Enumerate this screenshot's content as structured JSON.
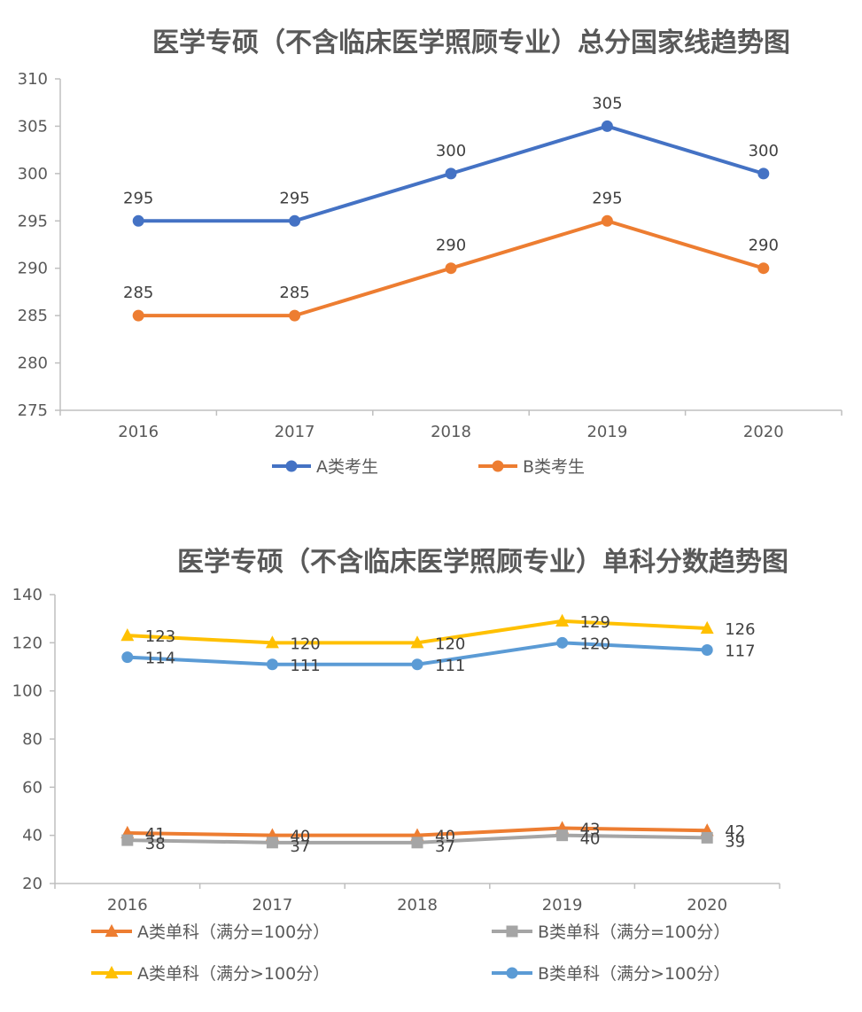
{
  "chart_data": [
    {
      "type": "line",
      "title": "医学专硕（不含临床医学照顾专业）总分国家线趋势图",
      "categories": [
        "2016",
        "2017",
        "2018",
        "2019",
        "2020"
      ],
      "ylim": [
        275,
        310
      ],
      "yticks": [
        "275",
        "280",
        "285",
        "290",
        "295",
        "300",
        "305",
        "310"
      ],
      "legend_position": "bottom",
      "series": [
        {
          "name": "A类考生",
          "values": [
            295,
            295,
            300,
            305,
            300
          ],
          "labels": [
            "295",
            "295",
            "300",
            "305",
            "300"
          ],
          "color": "#4472c4",
          "marker": "circle"
        },
        {
          "name": "B类考生",
          "values": [
            285,
            285,
            290,
            295,
            290
          ],
          "labels": [
            "285",
            "285",
            "290",
            "295",
            "290"
          ],
          "color": "#ed7d31",
          "marker": "circle"
        }
      ]
    },
    {
      "type": "line",
      "title": "医学专硕（不含临床医学照顾专业）单科分数趋势图",
      "categories": [
        "2016",
        "2017",
        "2018",
        "2019",
        "2020"
      ],
      "ylim": [
        20,
        140
      ],
      "yticks": [
        "20",
        "40",
        "60",
        "80",
        "100",
        "120",
        "140"
      ],
      "legend_position": "bottom",
      "series": [
        {
          "name": "A类单科（满分=100分）",
          "values": [
            41,
            40,
            40,
            43,
            42
          ],
          "labels": [
            "41",
            "40",
            "40",
            "43",
            "42"
          ],
          "color": "#ed7d31",
          "marker": "triangle"
        },
        {
          "name": "B类单科（满分=100分）",
          "values": [
            38,
            37,
            37,
            40,
            39
          ],
          "labels": [
            "38",
            "37",
            "37",
            "40",
            "39"
          ],
          "color": "#a5a5a5",
          "marker": "square"
        },
        {
          "name": "A类单科（满分>100分）",
          "values": [
            123,
            120,
            120,
            129,
            126
          ],
          "labels": [
            "123",
            "120",
            "120",
            "129",
            "126"
          ],
          "color": "#ffc000",
          "marker": "triangle"
        },
        {
          "name": "B类单科（满分>100分）",
          "values": [
            114,
            111,
            111,
            120,
            117
          ],
          "labels": [
            "114",
            "111",
            "111",
            "120",
            "117"
          ],
          "color": "#5b9bd5",
          "marker": "circle"
        }
      ]
    }
  ]
}
